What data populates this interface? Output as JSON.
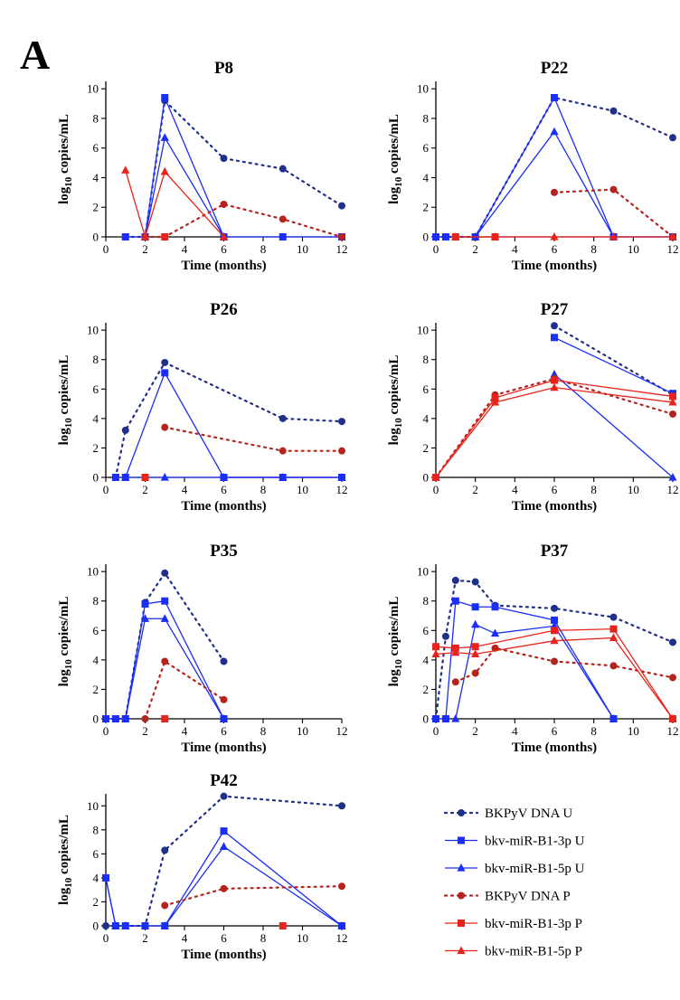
{
  "panel_label": "A",
  "colors": {
    "blue_dna": "#1f2f8a",
    "blue": "#1a2ef5",
    "red": "#e8231c",
    "red_dna": "#b5231c"
  },
  "legend": [
    "BKPyV DNA U",
    "bkv-miR-B1-3p U",
    "bkv-miR-B1-5p U",
    "BKPyV DNA P",
    "bkv-miR-B1-3p P",
    "bkv-miR-B1-5p P"
  ],
  "chart_data": [
    {
      "type": "line",
      "title": "P8",
      "xlabel": "Time (months)",
      "ylabel": "log10 copies/mL",
      "xlim": [
        0,
        12
      ],
      "ylim": [
        0,
        10.5
      ],
      "xticks": [
        0,
        2,
        4,
        6,
        8,
        10,
        12
      ],
      "yticks": [
        0,
        2,
        4,
        6,
        8,
        10
      ],
      "series": [
        {
          "name": "BKPyV DNA U",
          "x": [
            1,
            2,
            3,
            6,
            9,
            12
          ],
          "y": [
            0,
            0,
            9.2,
            5.3,
            4.6,
            2.1
          ]
        },
        {
          "name": "bkv-miR-B1-3p U",
          "x": [
            1,
            2,
            3,
            6,
            9,
            12
          ],
          "y": [
            0,
            0,
            9.4,
            0,
            0,
            0
          ]
        },
        {
          "name": "bkv-miR-B1-5p U",
          "x": [
            2,
            3,
            6
          ],
          "y": [
            0,
            6.7,
            0
          ]
        },
        {
          "name": "BKPyV DNA P",
          "x": [
            2,
            3,
            6,
            9,
            12
          ],
          "y": [
            0,
            0,
            2.2,
            1.2,
            0
          ]
        },
        {
          "name": "bkv-miR-B1-3p P",
          "x": [
            3
          ],
          "y": [
            0
          ]
        },
        {
          "name": "bkv-miR-B1-5p P",
          "x": [
            1,
            2,
            3,
            6
          ],
          "y": [
            4.5,
            0,
            4.4,
            0
          ]
        }
      ]
    },
    {
      "type": "line",
      "title": "P22",
      "xlabel": "Time (months)",
      "ylabel": "log10 copies/mL",
      "xlim": [
        0,
        12
      ],
      "ylim": [
        0,
        10.5
      ],
      "xticks": [
        0,
        2,
        4,
        6,
        8,
        10,
        12
      ],
      "yticks": [
        0,
        2,
        4,
        6,
        8,
        10
      ],
      "series": [
        {
          "name": "BKPyV DNA U",
          "x": [
            0,
            0.5,
            2,
            6,
            9,
            12
          ],
          "y": [
            0,
            0,
            0,
            9.4,
            8.5,
            6.7
          ]
        },
        {
          "name": "bkv-miR-B1-3p U",
          "x": [
            0,
            0.5,
            2,
            6,
            9,
            12
          ],
          "y": [
            0,
            0,
            0,
            9.4,
            0,
            0
          ]
        },
        {
          "name": "bkv-miR-B1-5p U",
          "x": [
            2,
            6,
            9
          ],
          "y": [
            0,
            7.1,
            0
          ]
        },
        {
          "name": "BKPyV DNA P",
          "x": [
            6,
            9,
            12
          ],
          "y": [
            3.0,
            3.2,
            0
          ]
        },
        {
          "name": "bkv-miR-B1-3p P",
          "x": [
            1,
            3
          ],
          "y": [
            0,
            0
          ]
        },
        {
          "name": "bkv-miR-B1-5p P",
          "x": [
            1,
            3,
            6,
            9,
            12
          ],
          "y": [
            0,
            0,
            0,
            0,
            0
          ]
        }
      ]
    },
    {
      "type": "line",
      "title": "P26",
      "xlabel": "Time (months)",
      "ylabel": "log10 copies/mL",
      "xlim": [
        0,
        12
      ],
      "ylim": [
        0,
        10.5
      ],
      "xticks": [
        0,
        2,
        4,
        6,
        8,
        10,
        12
      ],
      "yticks": [
        0,
        2,
        4,
        6,
        8,
        10
      ],
      "series": [
        {
          "name": "BKPyV DNA U",
          "x": [
            0.5,
            1,
            3,
            9,
            12
          ],
          "y": [
            0,
            3.2,
            7.8,
            4.0,
            3.8
          ]
        },
        {
          "name": "bkv-miR-B1-3p U",
          "x": [
            0.5,
            1,
            3,
            6,
            9,
            12
          ],
          "y": [
            0,
            0,
            7.1,
            0,
            0,
            0
          ]
        },
        {
          "name": "bkv-miR-B1-5p U",
          "x": [
            1,
            3,
            6,
            9,
            12
          ],
          "y": [
            0,
            0,
            0,
            0,
            0
          ]
        },
        {
          "name": "BKPyV DNA P",
          "x": [
            3,
            9,
            12
          ],
          "y": [
            3.4,
            1.8,
            1.8
          ]
        },
        {
          "name": "bkv-miR-B1-3p P",
          "x": [
            2
          ],
          "y": [
            0
          ]
        },
        {
          "name": "bkv-miR-B1-5p P",
          "x": [],
          "y": []
        }
      ]
    },
    {
      "type": "line",
      "title": "P27",
      "xlabel": "Time (months)",
      "ylabel": "log10 copies/mL",
      "xlim": [
        0,
        12
      ],
      "ylim": [
        0,
        10.5
      ],
      "xticks": [
        0,
        2,
        4,
        6,
        8,
        10,
        12
      ],
      "yticks": [
        0,
        2,
        4,
        6,
        8,
        10
      ],
      "series": [
        {
          "name": "BKPyV DNA U",
          "x": [
            6,
            12
          ],
          "y": [
            10.3,
            5.6
          ]
        },
        {
          "name": "bkv-miR-B1-3p U",
          "x": [
            6,
            12
          ],
          "y": [
            9.5,
            5.7
          ]
        },
        {
          "name": "bkv-miR-B1-5p U",
          "x": [
            6,
            12
          ],
          "y": [
            7.0,
            0
          ]
        },
        {
          "name": "BKPyV DNA P",
          "x": [
            0,
            3,
            6,
            12
          ],
          "y": [
            0,
            5.6,
            6.7,
            4.3
          ]
        },
        {
          "name": "bkv-miR-B1-3p P",
          "x": [
            0,
            3,
            6,
            12
          ],
          "y": [
            0,
            5.4,
            6.6,
            5.5
          ]
        },
        {
          "name": "bkv-miR-B1-5p P",
          "x": [
            0,
            3,
            6,
            12
          ],
          "y": [
            0,
            5.1,
            6.1,
            5.1
          ]
        }
      ]
    },
    {
      "type": "line",
      "title": "P35",
      "xlabel": "Time (months)",
      "ylabel": "log10 copies/mL",
      "xlim": [
        0,
        12
      ],
      "ylim": [
        0,
        10.5
      ],
      "xticks": [
        0,
        2,
        4,
        6,
        8,
        10,
        12
      ],
      "yticks": [
        0,
        2,
        4,
        6,
        8,
        10
      ],
      "series": [
        {
          "name": "BKPyV DNA U",
          "x": [
            0,
            0.5,
            1,
            2,
            3,
            6
          ],
          "y": [
            0,
            0,
            0,
            7.9,
            9.9,
            3.9
          ]
        },
        {
          "name": "bkv-miR-B1-3p U",
          "x": [
            0,
            0.5,
            1,
            2,
            3,
            6
          ],
          "y": [
            0,
            0,
            0,
            7.8,
            8.0,
            0
          ]
        },
        {
          "name": "bkv-miR-B1-5p U",
          "x": [
            1,
            2,
            3,
            6
          ],
          "y": [
            0,
            6.8,
            6.8,
            0
          ]
        },
        {
          "name": "BKPyV DNA P",
          "x": [
            2,
            3,
            6
          ],
          "y": [
            0,
            3.9,
            1.3
          ]
        },
        {
          "name": "bkv-miR-B1-3p P",
          "x": [
            3
          ],
          "y": [
            0
          ]
        },
        {
          "name": "bkv-miR-B1-5p P",
          "x": [],
          "y": []
        }
      ]
    },
    {
      "type": "line",
      "title": "P37",
      "xlabel": "Time (months)",
      "ylabel": "log10 copies/mL",
      "xlim": [
        0,
        12
      ],
      "ylim": [
        0,
        10.5
      ],
      "xticks": [
        0,
        2,
        4,
        6,
        8,
        10,
        12
      ],
      "yticks": [
        0,
        2,
        4,
        6,
        8,
        10
      ],
      "series": [
        {
          "name": "BKPyV DNA U",
          "x": [
            0,
            0.5,
            1,
            2,
            3,
            6,
            9,
            12
          ],
          "y": [
            0,
            5.6,
            9.4,
            9.3,
            7.7,
            7.5,
            6.9,
            5.2
          ]
        },
        {
          "name": "bkv-miR-B1-3p U",
          "x": [
            0,
            0.5,
            1,
            2,
            3,
            6,
            9
          ],
          "y": [
            0,
            0,
            8.0,
            7.6,
            7.6,
            6.7,
            0
          ]
        },
        {
          "name": "bkv-miR-B1-5p U",
          "x": [
            1,
            2,
            3,
            6,
            9
          ],
          "y": [
            0,
            6.4,
            5.8,
            6.3,
            0
          ]
        },
        {
          "name": "BKPyV DNA P",
          "x": [
            1,
            2,
            3,
            6,
            9,
            12
          ],
          "y": [
            2.5,
            3.1,
            4.8,
            3.9,
            3.6,
            2.8
          ]
        },
        {
          "name": "bkv-miR-B1-3p P",
          "x": [
            0,
            1,
            2,
            6,
            9,
            12
          ],
          "y": [
            4.9,
            4.8,
            4.9,
            6.0,
            6.1,
            0
          ]
        },
        {
          "name": "bkv-miR-B1-5p P",
          "x": [
            0,
            1,
            2,
            6,
            9,
            12
          ],
          "y": [
            4.4,
            4.5,
            4.4,
            5.3,
            5.5,
            0
          ]
        }
      ]
    },
    {
      "type": "line",
      "title": "P42",
      "xlabel": "Time (months)",
      "ylabel": "log10 copies/mL",
      "xlim": [
        0,
        12
      ],
      "ylim": [
        0,
        11
      ],
      "xticks": [
        0,
        2,
        4,
        6,
        8,
        10,
        12
      ],
      "yticks": [
        0,
        2,
        4,
        6,
        8,
        10
      ],
      "series": [
        {
          "name": "BKPyV DNA U",
          "x": [
            0,
            0.5,
            1,
            2,
            3,
            6,
            12
          ],
          "y": [
            0,
            0,
            0,
            0,
            6.3,
            10.8,
            10.0
          ]
        },
        {
          "name": "bkv-miR-B1-3p U",
          "x": [
            0,
            0.5,
            1,
            2,
            3,
            6,
            12
          ],
          "y": [
            4.0,
            0,
            0,
            0,
            0,
            7.9,
            0
          ]
        },
        {
          "name": "bkv-miR-B1-5p U",
          "x": [
            0,
            0.5,
            1,
            2,
            3,
            6,
            12
          ],
          "y": [
            4.0,
            0,
            0,
            0,
            0,
            6.6,
            0
          ]
        },
        {
          "name": "BKPyV DNA P",
          "x": [
            3,
            6,
            12
          ],
          "y": [
            1.7,
            3.1,
            3.3
          ]
        },
        {
          "name": "bkv-miR-B1-3p P",
          "x": [
            9
          ],
          "y": [
            0
          ]
        },
        {
          "name": "bkv-miR-B1-5p P",
          "x": [],
          "y": []
        }
      ]
    }
  ]
}
